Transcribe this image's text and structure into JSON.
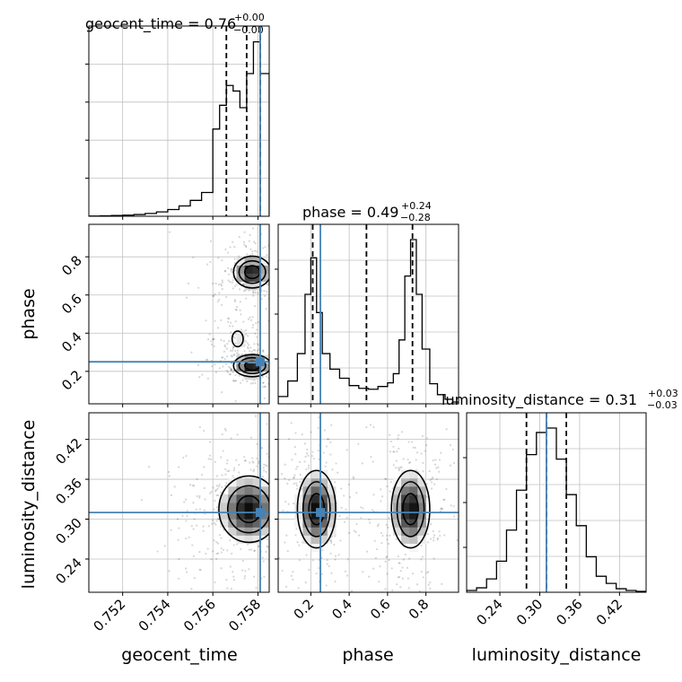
{
  "colors": {
    "truth": "#4682b4",
    "hist": "#000000",
    "grid": "#c0c0c0",
    "quantile": "#000000"
  },
  "chart_data": {
    "type": "corner",
    "parameters": [
      "geocent_time",
      "phase",
      "luminosity_distance"
    ],
    "truths": {
      "geocent_time": 0.7581,
      "phase": 0.25,
      "luminosity_distance": 0.31
    },
    "ranges": {
      "geocent_time": [
        0.7505,
        0.7585
      ],
      "phase": [
        0.03,
        0.97
      ],
      "luminosity_distance": [
        0.19,
        0.46
      ]
    },
    "ticks": {
      "geocent_time": [
        0.752,
        0.754,
        0.756,
        0.758
      ],
      "phase": [
        0.2,
        0.4,
        0.6,
        0.8
      ],
      "luminosity_distance": [
        0.24,
        0.3,
        0.36,
        0.42
      ]
    },
    "tick_labels": {
      "geocent_time": [
        "0.752",
        "0.754",
        "0.756",
        "0.758"
      ],
      "phase": [
        "0.2",
        "0.4",
        "0.6",
        "0.8"
      ],
      "luminosity_distance": [
        "0.24",
        "0.30",
        "0.36",
        "0.42"
      ]
    },
    "titles": {
      "geocent_time": {
        "text": "geocent_time = 0.76",
        "plus": "+0.00",
        "minus": "−0.00"
      },
      "phase": {
        "text": "phase = 0.49",
        "plus": "+0.24",
        "minus": "−0.28"
      },
      "luminosity_distance": {
        "text": "luminosity_distance = 0.31",
        "plus": "+0.03",
        "minus": "−0.03"
      }
    },
    "axis_labels": {
      "geocent_time": "geocent_time",
      "phase": "phase",
      "luminosity_distance": "luminosity_distance"
    },
    "quantiles": {
      "geocent_time": [
        0.7566,
        0.7575,
        0.7581
      ],
      "phase": [
        0.21,
        0.49,
        0.73
      ],
      "luminosity_distance": [
        0.28,
        0.31,
        0.34
      ]
    },
    "hist_1d": {
      "geocent_time": {
        "edges": [
          0.7505,
          0.751,
          0.7515,
          0.752,
          0.7525,
          0.753,
          0.7535,
          0.754,
          0.7545,
          0.755,
          0.7555,
          0.756,
          0.7563,
          0.7566,
          0.7569,
          0.7572,
          0.7575,
          0.7578,
          0.7581,
          0.7585
        ],
        "counts": [
          0.2,
          0.5,
          0.9,
          1.4,
          2.2,
          3.5,
          5.5,
          8.5,
          13,
          20,
          30,
          110,
          140,
          165,
          158,
          137,
          180,
          220,
          180
        ]
      },
      "phase": {
        "edges": [
          0.03,
          0.08,
          0.13,
          0.17,
          0.2,
          0.23,
          0.26,
          0.3,
          0.35,
          0.4,
          0.45,
          0.5,
          0.55,
          0.6,
          0.63,
          0.66,
          0.69,
          0.72,
          0.75,
          0.78,
          0.82,
          0.86,
          0.9,
          0.94,
          0.97
        ],
        "counts": [
          8,
          25,
          55,
          120,
          160,
          100,
          55,
          38,
          28,
          20,
          17,
          16,
          19,
          23,
          33,
          70,
          140,
          180,
          120,
          60,
          22,
          10,
          5,
          2
        ]
      },
      "luminosity_distance": {
        "edges": [
          0.19,
          0.205,
          0.22,
          0.235,
          0.25,
          0.265,
          0.28,
          0.295,
          0.31,
          0.325,
          0.34,
          0.355,
          0.37,
          0.385,
          0.4,
          0.415,
          0.43,
          0.445,
          0.46
        ],
        "counts": [
          2,
          5,
          15,
          35,
          70,
          115,
          155,
          180,
          185,
          150,
          110,
          75,
          40,
          18,
          10,
          4,
          2,
          1
        ]
      }
    },
    "hist_2d": [
      {
        "x": "geocent_time",
        "y": "phase",
        "modes": [
          {
            "cx": 0.75775,
            "cy": 0.72,
            "sx": 0.0005,
            "sy": 0.05,
            "w": 1.0
          },
          {
            "cx": 0.75775,
            "cy": 0.23,
            "sx": 0.0005,
            "sy": 0.035,
            "w": 1.0
          },
          {
            "cx": 0.7571,
            "cy": 0.37,
            "sx": 0.0003,
            "sy": 0.05,
            "w": 0.35
          }
        ]
      },
      {
        "x": "geocent_time",
        "y": "luminosity_distance",
        "modes": [
          {
            "cx": 0.7576,
            "cy": 0.315,
            "sx": 0.0008,
            "sy": 0.03,
            "w": 1.0
          }
        ]
      },
      {
        "x": "phase",
        "y": "luminosity_distance",
        "modes": [
          {
            "cx": 0.23,
            "cy": 0.315,
            "sx": 0.06,
            "sy": 0.035,
            "w": 1.0
          },
          {
            "cx": 0.72,
            "cy": 0.315,
            "sx": 0.06,
            "sy": 0.035,
            "w": 1.0
          }
        ]
      }
    ]
  }
}
